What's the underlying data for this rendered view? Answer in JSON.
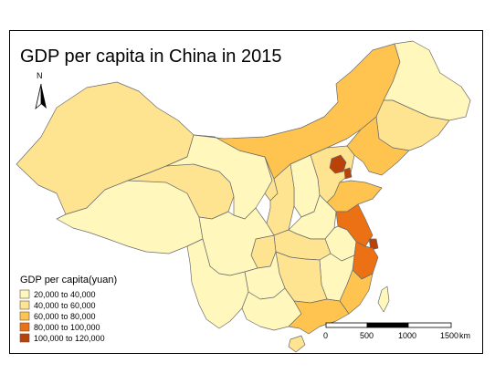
{
  "map": {
    "title": "GDP per capita in China in 2015",
    "north_label": "N",
    "legend": {
      "title": "GDP per capita(yuan)",
      "classes": [
        {
          "label": "20,000 to 40,000",
          "color": "#fff7bc"
        },
        {
          "label": "40,000 to 60,000",
          "color": "#fee391"
        },
        {
          "label": "60,000 to 80,000",
          "color": "#fec44f"
        },
        {
          "label": "80,000 to 100,000",
          "color": "#ec7014"
        },
        {
          "label": "100,000 to 120,000",
          "color": "#b8420a"
        }
      ]
    },
    "scale_bar": {
      "ticks": [
        "0",
        "500",
        "1000",
        "1500"
      ],
      "unit": "km"
    },
    "regions": [
      {
        "name": "Xinjiang",
        "class": 1
      },
      {
        "name": "Tibet",
        "class": 0
      },
      {
        "name": "Qinghai",
        "class": 1
      },
      {
        "name": "Gansu",
        "class": 0
      },
      {
        "name": "Inner Mongolia",
        "class": 2
      },
      {
        "name": "Heilongjiang",
        "class": 0
      },
      {
        "name": "Jilin",
        "class": 1
      },
      {
        "name": "Liaoning",
        "class": 2
      },
      {
        "name": "Beijing",
        "class": 4
      },
      {
        "name": "Tianjin",
        "class": 4
      },
      {
        "name": "Hebei",
        "class": 1
      },
      {
        "name": "Shanxi",
        "class": 0
      },
      {
        "name": "Shaanxi",
        "class": 1
      },
      {
        "name": "Ningxia",
        "class": 1
      },
      {
        "name": "Shandong",
        "class": 2
      },
      {
        "name": "Henan",
        "class": 0
      },
      {
        "name": "Jiangsu",
        "class": 3
      },
      {
        "name": "Shanghai",
        "class": 4
      },
      {
        "name": "Zhejiang",
        "class": 3
      },
      {
        "name": "Anhui",
        "class": 0
      },
      {
        "name": "Hubei",
        "class": 1
      },
      {
        "name": "Chongqing",
        "class": 1
      },
      {
        "name": "Sichuan",
        "class": 0
      },
      {
        "name": "Hunan",
        "class": 1
      },
      {
        "name": "Jiangxi",
        "class": 0
      },
      {
        "name": "Fujian",
        "class": 2
      },
      {
        "name": "Guangdong",
        "class": 2
      },
      {
        "name": "Guangxi",
        "class": 0
      },
      {
        "name": "Guizhou",
        "class": 0
      },
      {
        "name": "Yunnan",
        "class": 0
      },
      {
        "name": "Hainan",
        "class": 1
      },
      {
        "name": "Taiwan",
        "class": 0
      }
    ]
  }
}
